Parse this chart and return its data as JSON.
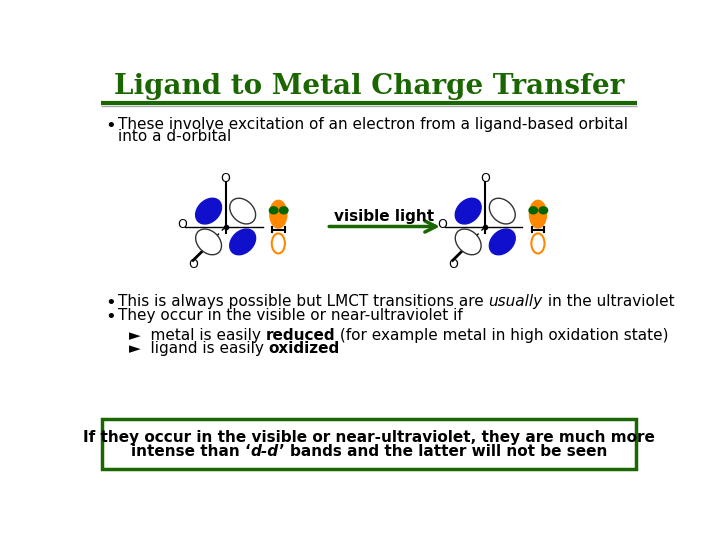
{
  "title": "Ligand to Metal Charge Transfer",
  "title_color": "#1a6600",
  "title_fontsize": 20,
  "slide_bg": "#ffffff",
  "bullet1_line1": "These involve excitation of an electron from a ligand-based orbital",
  "bullet1_line2": "into a d-orbital",
  "bullet2a": "This is always possible but LMCT transitions are ",
  "bullet2a_italic": "usually",
  "bullet2a_end": " in the ultraviolet",
  "bullet2b": "They occur in the visible or near-ultraviolet if",
  "sub1_pre": "►  metal is easily ",
  "sub1_bold": "reduced",
  "sub1_end": " (for example metal in high oxidation state)",
  "sub2_pre": "►  ligand is easily ",
  "sub2_bold": "oxidized",
  "box_line1": "If they occur in the visible or near-ultraviolet, they are much more",
  "box_line2_pre": "intense than ‘",
  "box_line2_italic": "d-d",
  "box_line2_end": "’ bands and the latter will not be seen",
  "box_border_color": "#1a6600",
  "visible_light_text": "visible light",
  "arrow_color": "#1a6600",
  "blue_color": "#1010cc",
  "orange_color": "#ff8800",
  "dark_green": "#006600",
  "header_line_color": "#1a6600"
}
